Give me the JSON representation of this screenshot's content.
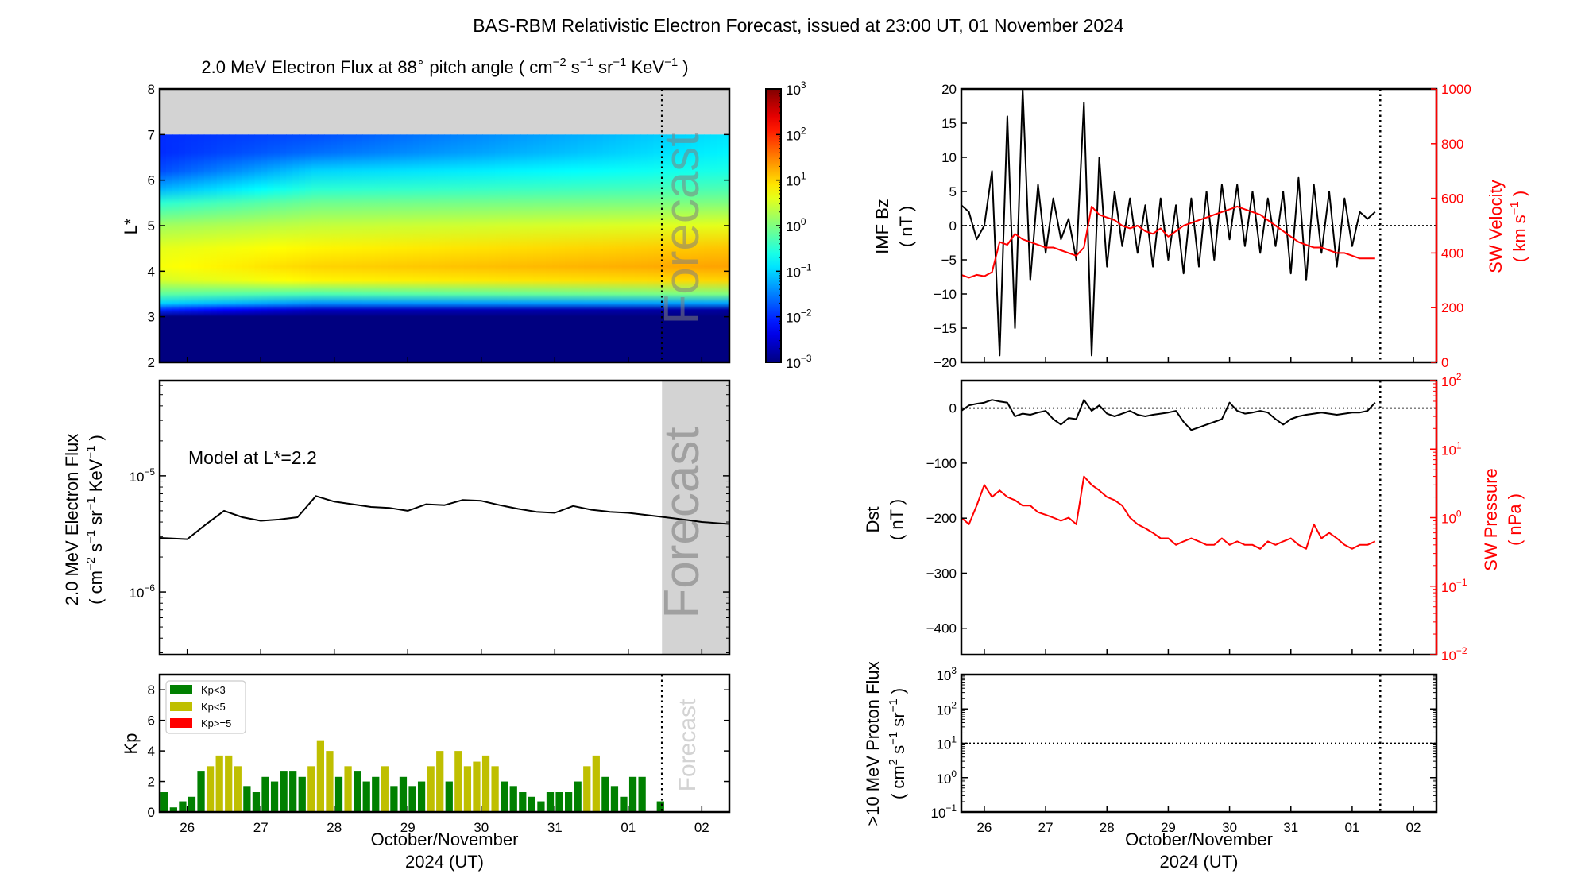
{
  "title": "BAS-RBM Relativistic Electron Forecast, issued at 23:00 UT, 01 November 2024",
  "forecast_label": "Forecast",
  "x_axis": {
    "range": [
      "2024-10-26 03:00",
      "2024-11-02 21:00"
    ],
    "ticks": [
      "2024-10-26 12:00",
      "2024-10-27 12:00",
      "2024-10-28 12:00",
      "2024-10-29 12:00",
      "2024-10-30 12:00",
      "2024-10-31 12:00",
      "2024-11-01 12:00",
      "2024-11-02 12:00"
    ],
    "tick_labels": [
      "26",
      "27",
      "28",
      "29",
      "30",
      "31",
      "01",
      "02"
    ],
    "label_line1": "October/November",
    "label_line2": "2024 (UT)",
    "forecast_start": "2024-11-01 23:00"
  },
  "colors": {
    "kp_low": "#008000",
    "kp_mid": "#bfbf00",
    "kp_high": "#ff0000",
    "secondary_axis": "#ff0000",
    "no_data": "#d3d3d3",
    "forecast_shade": "#d3d3d3"
  },
  "chart_data": [
    {
      "type": "heatmap",
      "title": [
        {
          "t": "2.0 MeV Electron Flux at 88"
        },
        {
          "sup": "∘"
        },
        {
          "t": "  pitch angle ( cm"
        },
        {
          "sup": "−2"
        },
        {
          "t": " s"
        },
        {
          "sup": "−1"
        },
        {
          "t": " sr"
        },
        {
          "sup": "−1"
        },
        {
          "t": " KeV"
        },
        {
          "sup": "−1"
        },
        {
          "t": " )"
        }
      ],
      "ylabel": "L*",
      "ylim": [
        2,
        8
      ],
      "yticks": [
        2,
        3,
        4,
        5,
        6,
        7,
        8
      ],
      "ytick_labels": [
        "2",
        "3",
        "4",
        "5",
        "6",
        "7",
        "8"
      ],
      "no_data_above_L": 7,
      "colormap": "jet",
      "color_scale": "log",
      "zlim": [
        0.001,
        1000
      ],
      "colorbar_ticks": [
        -3,
        -2,
        -1,
        0,
        1,
        2,
        3
      ],
      "colorbar_tick_labels": [
        [
          "10",
          "−3"
        ],
        [
          "10",
          "−2"
        ],
        [
          "10",
          "−1"
        ],
        [
          "10",
          "0"
        ],
        [
          "10",
          "1"
        ],
        [
          "10",
          "2"
        ],
        [
          "10",
          "3"
        ]
      ],
      "L": [
        2,
        3.0,
        3.15,
        3.3,
        3.5,
        3.8,
        4.1,
        4.5,
        5.0,
        5.5,
        5.8,
        6.2,
        6.6,
        7.0
      ],
      "profiles": [
        {
          "time": "2024-10-26 03:00",
          "log10_flux": [
            -3,
            -3,
            -2.0,
            -1.0,
            -0.2,
            0.5,
            0.7,
            0.6,
            0.2,
            -0.5,
            -1.2,
            -1.8,
            -2.0,
            -2.0
          ]
        },
        {
          "time": "2024-10-28 06:00",
          "log10_flux": [
            -3,
            -3,
            -2.6,
            -1.4,
            -0.3,
            0.8,
            1.0,
            0.8,
            0.4,
            -0.1,
            -0.5,
            -1.0,
            -1.6,
            -1.8
          ]
        },
        {
          "time": "2024-11-02 21:00",
          "log10_flux": [
            -3,
            -3,
            -2.8,
            -1.3,
            0.0,
            1.0,
            1.3,
            1.1,
            0.6,
            0.0,
            -0.3,
            -0.6,
            -0.8,
            -0.9
          ]
        }
      ]
    },
    {
      "type": "line",
      "ylabel_line1": "2.0 MeV Electron Flux",
      "ylabel_line2": [
        {
          "t": "( cm"
        },
        {
          "sup": "−2"
        },
        {
          "t": " s"
        },
        {
          "sup": "−1"
        },
        {
          "t": " sr"
        },
        {
          "sup": "−1"
        },
        {
          "t": " KeV"
        },
        {
          "sup": "−1"
        },
        {
          "t": " )"
        }
      ],
      "annotation": "Model at L*=2.2",
      "yscale": "log",
      "ylim_log10": [
        -6.54,
        -4.18
      ],
      "yticks": [
        -6,
        -5
      ],
      "ytick_labels": [
        [
          "10",
          "−6"
        ],
        [
          "10",
          "−5"
        ]
      ],
      "time_start": "2024-10-26 00:00",
      "time_step_hours": 6,
      "values": [
        2.95e-06,
        2.9e-06,
        2.85e-06,
        3.8e-06,
        5e-06,
        4.4e-06,
        4.1e-06,
        4.2e-06,
        4.4e-06,
        6.7e-06,
        6e-06,
        5.7e-06,
        5.4e-06,
        5.3e-06,
        5e-06,
        5.7e-06,
        5.6e-06,
        6.2e-06,
        6.1e-06,
        5.6e-06,
        5.2e-06,
        4.9e-06,
        4.8e-06,
        5.5e-06,
        5.1e-06,
        4.9e-06,
        4.8e-06,
        4.6e-06,
        4.4e-06,
        4.2e-06,
        4e-06,
        3.9e-06,
        3.8e-06
      ]
    },
    {
      "type": "bar",
      "ylabel": "Kp",
      "ylim": [
        0,
        9
      ],
      "yticks": [
        0,
        2,
        4,
        6,
        8
      ],
      "ytick_labels": [
        "0",
        "2",
        "4",
        "6",
        "8"
      ],
      "legend": [
        "Kp<3",
        "Kp<5",
        "Kp>=5"
      ],
      "legend_position": "top-left",
      "time_start": "2024-10-26 03:00",
      "time_step_hours": 3,
      "values": [
        1.3,
        0.3,
        0.7,
        1.0,
        2.7,
        3.0,
        3.7,
        3.7,
        3.0,
        1.7,
        1.3,
        2.3,
        2.0,
        2.7,
        2.7,
        2.3,
        3.0,
        4.7,
        4.0,
        2.3,
        3.0,
        2.7,
        2.0,
        2.3,
        3.0,
        1.7,
        2.3,
        1.7,
        2.0,
        3.0,
        4.0,
        2.0,
        4.0,
        3.0,
        3.3,
        3.7,
        3.0,
        2.0,
        1.7,
        1.3,
        1.0,
        0.7,
        1.3,
        1.3,
        1.3,
        2.0,
        3.0,
        3.7,
        2.3,
        1.7,
        1.0,
        2.3,
        2.3,
        0,
        0.7
      ]
    },
    {
      "type": "line",
      "ylabel_line1": "IMF Bz",
      "ylabel_line2": "( nT )",
      "ylim": [
        -20,
        20
      ],
      "yticks": [
        -20,
        -15,
        -10,
        -5,
        0,
        5,
        10,
        15,
        20
      ],
      "ytick_labels": [
        "−20",
        "−15",
        "−10",
        "−5",
        "0",
        "5",
        "10",
        "15",
        "20"
      ],
      "y2label_line1": "SW Velocity",
      "y2label_line2": [
        {
          "t": "( km s"
        },
        {
          "sup": "−1"
        },
        {
          "t": " )"
        }
      ],
      "y2lim": [
        0,
        1000
      ],
      "y2ticks": [
        0,
        200,
        400,
        600,
        800,
        1000
      ],
      "y2tick_labels": [
        "0",
        "200",
        "400",
        "600",
        "800",
        "1000"
      ],
      "time_start": "2024-10-26 03:00",
      "time_step_hours": 3,
      "series": [
        {
          "axis": "left",
          "values": [
            3,
            2,
            -2,
            0,
            8,
            -19,
            16,
            -15,
            20,
            -8,
            6,
            -4,
            4,
            -2,
            1,
            -5,
            18,
            -19,
            10,
            -6,
            5,
            -3,
            4,
            -4,
            3,
            -6,
            4,
            -5,
            3,
            -7,
            4,
            -6,
            5,
            -5,
            6,
            -2,
            6,
            -3,
            5,
            -4,
            4,
            -3,
            5,
            -7,
            7,
            -8,
            6,
            -4,
            5,
            -6,
            4,
            -3,
            2,
            1,
            2
          ]
        },
        {
          "axis": "right",
          "values": [
            320,
            310,
            320,
            315,
            330,
            440,
            430,
            470,
            450,
            440,
            430,
            420,
            420,
            410,
            400,
            390,
            420,
            570,
            540,
            530,
            520,
            500,
            490,
            500,
            480,
            470,
            490,
            460,
            480,
            500,
            510,
            520,
            530,
            540,
            550,
            560,
            570,
            560,
            550,
            540,
            520,
            500,
            480,
            460,
            440,
            430,
            420,
            420,
            410,
            400,
            400,
            390,
            380,
            380,
            380
          ]
        }
      ]
    },
    {
      "type": "line",
      "ylabel_line1": "Dst",
      "ylabel_line2": "( nT )",
      "ylim": [
        -448,
        50
      ],
      "yticks": [
        0,
        -100,
        -200,
        -300,
        -400
      ],
      "ytick_labels": [
        "0",
        "−100",
        "−200",
        "−300",
        "−400"
      ],
      "y2label_line1": "SW Pressure",
      "y2label_line2": "( nPa )",
      "y2scale": "log",
      "y2lim_log10": [
        -2,
        2
      ],
      "y2ticks": [
        -2,
        -1,
        0,
        1,
        2
      ],
      "y2tick_labels": [
        [
          "10",
          "−2"
        ],
        [
          "10",
          "−1"
        ],
        [
          "10",
          "0"
        ],
        [
          "10",
          "1"
        ],
        [
          "10",
          "2"
        ]
      ],
      "time_start": "2024-10-26 03:00",
      "time_step_hours": 3,
      "series": [
        {
          "axis": "left",
          "values": [
            -5,
            5,
            8,
            10,
            15,
            12,
            10,
            -15,
            -10,
            -12,
            -8,
            -5,
            -20,
            -30,
            -18,
            -20,
            15,
            -5,
            5,
            -10,
            -15,
            -10,
            -5,
            -12,
            -15,
            -12,
            -10,
            -8,
            -5,
            -25,
            -40,
            -35,
            -30,
            -25,
            -20,
            10,
            -5,
            -10,
            -8,
            -5,
            -8,
            -20,
            -30,
            -20,
            -15,
            -12,
            -10,
            -8,
            -10,
            -12,
            -10,
            -8,
            -8,
            -5,
            10
          ]
        },
        {
          "axis": "right",
          "values": [
            1.0,
            0.8,
            1.5,
            3,
            2,
            2.5,
            2,
            1.8,
            1.5,
            1.5,
            1.2,
            1.1,
            1.0,
            0.9,
            1.0,
            0.8,
            4,
            3,
            2.5,
            2,
            1.8,
            1.5,
            1.0,
            0.8,
            0.7,
            0.6,
            0.5,
            0.5,
            0.4,
            0.45,
            0.5,
            0.45,
            0.4,
            0.4,
            0.5,
            0.4,
            0.45,
            0.4,
            0.4,
            0.35,
            0.45,
            0.4,
            0.45,
            0.5,
            0.4,
            0.35,
            0.8,
            0.5,
            0.6,
            0.5,
            0.4,
            0.35,
            0.4,
            0.4,
            0.45
          ]
        }
      ]
    },
    {
      "type": "line",
      "ylabel_line1": ">10 MeV Proton Flux",
      "ylabel_line2": [
        {
          "t": "( cm"
        },
        {
          "sup": "2"
        },
        {
          "t": " s"
        },
        {
          "sup": "−1"
        },
        {
          "t": " sr"
        },
        {
          "sup": "−1"
        },
        {
          "t": " )"
        }
      ],
      "yscale": "log",
      "ylim_log10": [
        -1,
        3
      ],
      "yticks": [
        -1,
        0,
        1,
        2,
        3
      ],
      "ytick_labels": [
        [
          "10",
          "−1"
        ],
        [
          "10",
          "0"
        ],
        [
          "10",
          "1"
        ],
        [
          "10",
          "2"
        ],
        [
          "10",
          "3"
        ]
      ],
      "threshold": 10,
      "values": []
    }
  ]
}
